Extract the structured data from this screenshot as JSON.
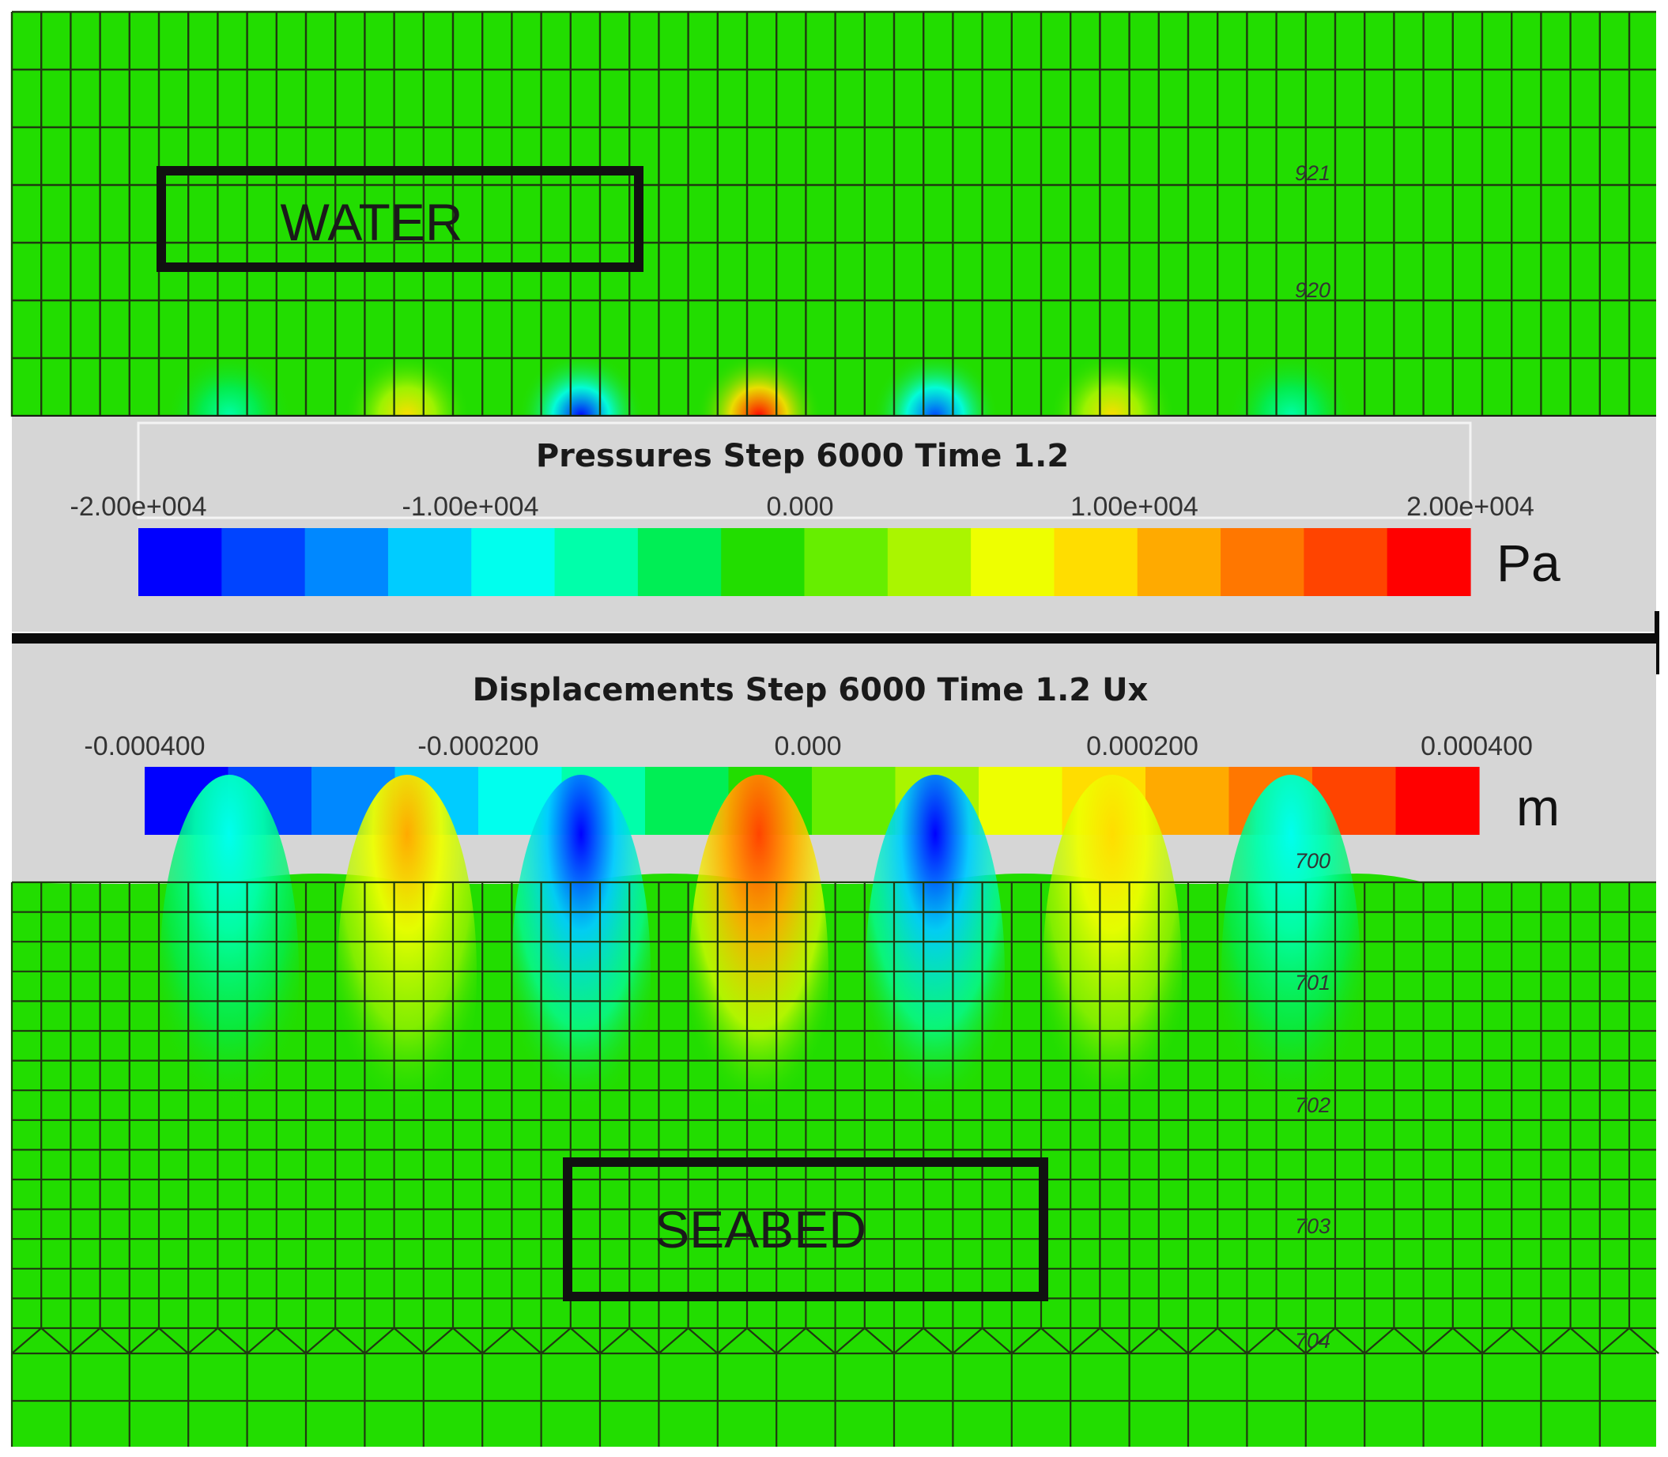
{
  "regions": {
    "water_label": "WATER",
    "seabed_label": "SEABED"
  },
  "pressure_bar": {
    "title": "Pressures Step 6000 Time 1.2",
    "ticks": [
      "-2.00e+004",
      "-1.00e+004",
      "0.000",
      "1.00e+004",
      "2.00e+004"
    ],
    "unit": "Pa",
    "range": [
      -20000,
      20000
    ]
  },
  "displacement_bar": {
    "title": "Displacements Step 6000 Time 1.2 Ux",
    "ticks": [
      "-0.000400",
      "-0.000200",
      "0.000",
      "0.000200",
      "0.000400"
    ],
    "unit": "m",
    "range": [
      -0.0004,
      0.0004
    ]
  },
  "node_labels": {
    "water": [
      "921",
      "920"
    ],
    "seabed": [
      "700",
      "701",
      "702",
      "703",
      "704"
    ]
  },
  "colors": {
    "background_green": "#22dd00",
    "mesh_line": "#1f3a10",
    "panel_gray": "#d6d6d6",
    "divider": "#0a0a0a"
  },
  "colormap": [
    "#0000ff",
    "#0044ff",
    "#0088ff",
    "#00ccff",
    "#00ffee",
    "#00ffaa",
    "#00ee55",
    "#22dd00",
    "#66ee00",
    "#aaf500",
    "#eeff00",
    "#ffdd00",
    "#ffaa00",
    "#ff7700",
    "#ff4400",
    "#ff0000"
  ],
  "wave_pattern": {
    "pressure_anomaly": [
      -0.35,
      0.5,
      -0.95,
      0.95,
      -0.9,
      0.5,
      -0.35
    ],
    "displacement_anomaly": [
      -0.45,
      0.55,
      -0.95,
      0.9,
      -0.95,
      0.5,
      -0.45
    ]
  }
}
